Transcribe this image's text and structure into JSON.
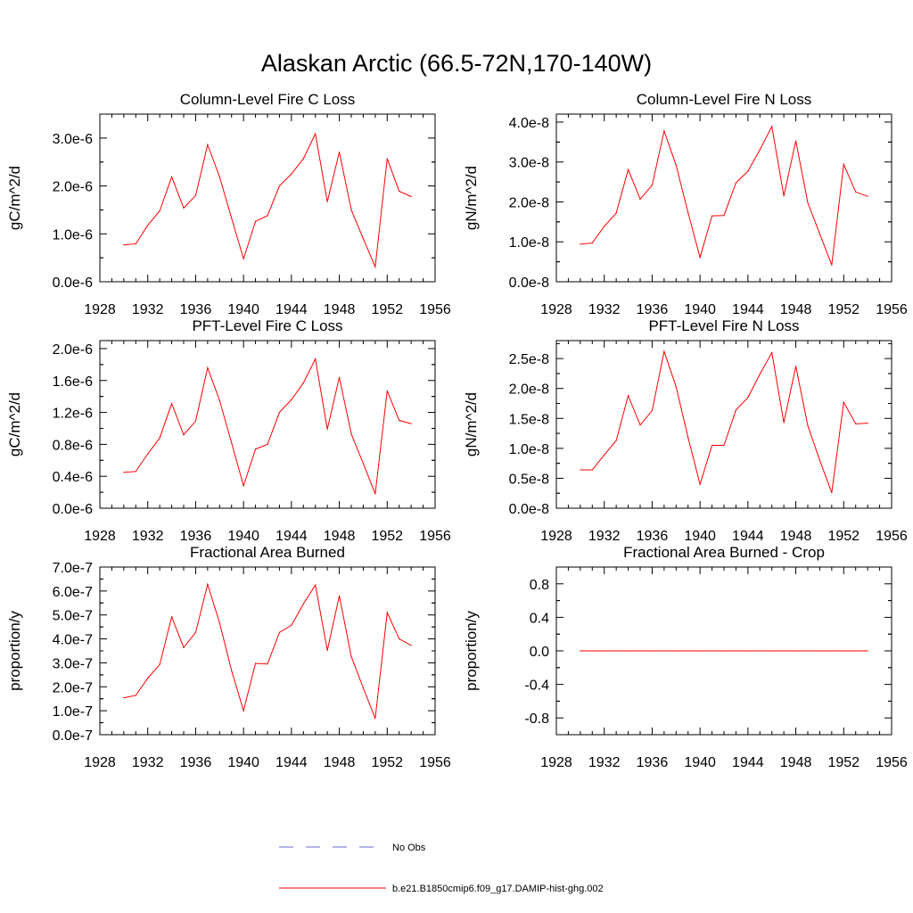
{
  "figure": {
    "title": "Alaskan Arctic (66.5-72N,170-140W)",
    "legend": [
      {
        "label": "No Obs",
        "style": "dashed",
        "color": "#6a6ad0"
      },
      {
        "label": "b.e21.B1850cmip6.f09_g17.DAMIP-hist-ghg.002",
        "style": "solid",
        "color": "#ff0000"
      }
    ]
  },
  "chart_data": [
    {
      "type": "line",
      "title": "Column-Level Fire C Loss",
      "xlabel": "",
      "ylabel": "gC/m^2/d",
      "xlim": [
        1928,
        1956
      ],
      "ylim": [
        0,
        3.5e-06
      ],
      "xticks": [
        1928,
        1932,
        1936,
        1940,
        1944,
        1948,
        1952,
        1956
      ],
      "xtick_labels": [
        "1928",
        "1932",
        "1936",
        "1940",
        "1944",
        "1948",
        "1952",
        "1956"
      ],
      "yticks": [
        0,
        1e-06,
        2e-06,
        3e-06
      ],
      "ytick_labels": [
        "0.0e-6",
        "1.0e-6",
        "2.0e-6",
        "3.0e-6"
      ],
      "grid": false,
      "series": [
        {
          "color": "#ff0000",
          "x": [
            1930,
            1931,
            1932,
            1933,
            1934,
            1935,
            1936,
            1937,
            1938,
            1939,
            1940,
            1941,
            1942,
            1943,
            1944,
            1945,
            1946,
            1947,
            1948,
            1949,
            1950,
            1951,
            1952,
            1953,
            1954
          ],
          "values": [
            7.7e-07,
            7.9e-07,
            1.18e-06,
            1.48e-06,
            2.19e-06,
            1.54e-06,
            1.8e-06,
            2.86e-06,
            2.19e-06,
            1.33e-06,
            4.8e-07,
            1.26e-06,
            1.38e-06,
            2e-06,
            2.25e-06,
            2.57e-06,
            3.09e-06,
            1.67e-06,
            2.71e-06,
            1.5e-06,
            9e-07,
            3.1e-07,
            2.57e-06,
            1.89e-06,
            1.78e-06
          ]
        }
      ]
    },
    {
      "type": "line",
      "title": "Column-Level Fire N Loss",
      "xlabel": "",
      "ylabel": "gN/m^2/d",
      "xlim": [
        1928,
        1956
      ],
      "ylim": [
        0,
        4.2e-08
      ],
      "xticks": [
        1928,
        1932,
        1936,
        1940,
        1944,
        1948,
        1952,
        1956
      ],
      "xtick_labels": [
        "1928",
        "1932",
        "1936",
        "1940",
        "1944",
        "1948",
        "1952",
        "1956"
      ],
      "yticks": [
        0,
        1e-08,
        2e-08,
        3e-08,
        4e-08
      ],
      "ytick_labels": [
        "0.0e-8",
        "1.0e-8",
        "2.0e-8",
        "3.0e-8",
        "4.0e-8"
      ],
      "grid": false,
      "series": [
        {
          "color": "#ff0000",
          "x": [
            1930,
            1931,
            1932,
            1933,
            1934,
            1935,
            1936,
            1937,
            1938,
            1939,
            1940,
            1941,
            1942,
            1943,
            1944,
            1945,
            1946,
            1947,
            1948,
            1949,
            1950,
            1951,
            1952,
            1953,
            1954
          ],
          "values": [
            9.4e-09,
            9.7e-09,
            1.39e-08,
            1.72e-08,
            2.81e-08,
            2.07e-08,
            2.42e-08,
            3.78e-08,
            2.92e-08,
            1.73e-08,
            6.1e-09,
            1.65e-08,
            1.66e-08,
            2.48e-08,
            2.77e-08,
            3.31e-08,
            3.89e-08,
            2.15e-08,
            3.53e-08,
            1.98e-08,
            1.2e-08,
            4.2e-09,
            2.94e-08,
            2.25e-08,
            2.14e-08
          ]
        }
      ]
    },
    {
      "type": "line",
      "title": "PFT-Level Fire C Loss",
      "xlabel": "",
      "ylabel": "gC/m^2/d",
      "xlim": [
        1928,
        1956
      ],
      "ylim": [
        0,
        2.1e-06
      ],
      "xticks": [
        1928,
        1932,
        1936,
        1940,
        1944,
        1948,
        1952,
        1956
      ],
      "xtick_labels": [
        "1928",
        "1932",
        "1936",
        "1940",
        "1944",
        "1948",
        "1952",
        "1956"
      ],
      "yticks": [
        0,
        4e-07,
        8e-07,
        1.2e-06,
        1.6e-06,
        2e-06
      ],
      "ytick_labels": [
        "0.0e-6",
        "0.4e-6",
        "0.8e-6",
        "1.2e-6",
        "1.6e-6",
        "2.0e-6"
      ],
      "grid": false,
      "series": [
        {
          "color": "#ff0000",
          "x": [
            1930,
            1931,
            1932,
            1933,
            1934,
            1935,
            1936,
            1937,
            1938,
            1939,
            1940,
            1941,
            1942,
            1943,
            1944,
            1945,
            1946,
            1947,
            1948,
            1949,
            1950,
            1951,
            1952,
            1953,
            1954
          ],
          "values": [
            4.5e-07,
            4.6e-07,
            6.8e-07,
            8.8e-07,
            1.31e-06,
            9.2e-07,
            1.09e-06,
            1.76e-06,
            1.35e-06,
            8.2e-07,
            2.8e-07,
            7.4e-07,
            8e-07,
            1.2e-06,
            1.36e-06,
            1.57e-06,
            1.87e-06,
            9.9e-07,
            1.64e-06,
            9.3e-07,
            5.6e-07,
            1.8e-07,
            1.47e-06,
            1.1e-06,
            1.06e-06
          ]
        }
      ]
    },
    {
      "type": "line",
      "title": "PFT-Level Fire N Loss",
      "xlabel": "",
      "ylabel": "gN/m^2/d",
      "xlim": [
        1928,
        1956
      ],
      "ylim": [
        0,
        2.8e-08
      ],
      "xticks": [
        1928,
        1932,
        1936,
        1940,
        1944,
        1948,
        1952,
        1956
      ],
      "xtick_labels": [
        "1928",
        "1932",
        "1936",
        "1940",
        "1944",
        "1948",
        "1952",
        "1956"
      ],
      "yticks": [
        0,
        5e-09,
        1e-08,
        1.5e-08,
        2e-08,
        2.5e-08
      ],
      "ytick_labels": [
        "0.0e-8",
        "0.5e-8",
        "1.0e-8",
        "1.5e-8",
        "2.0e-8",
        "2.5e-8"
      ],
      "grid": false,
      "series": [
        {
          "color": "#ff0000",
          "x": [
            1930,
            1931,
            1932,
            1933,
            1934,
            1935,
            1936,
            1937,
            1938,
            1939,
            1940,
            1941,
            1942,
            1943,
            1944,
            1945,
            1946,
            1947,
            1948,
            1949,
            1950,
            1951,
            1952,
            1953,
            1954
          ],
          "values": [
            6.4e-09,
            6.4e-09,
            8.9e-09,
            1.13e-08,
            1.88e-08,
            1.39e-08,
            1.63e-08,
            2.62e-08,
            2.03e-08,
            1.18e-08,
            4e-09,
            1.05e-08,
            1.05e-08,
            1.64e-08,
            1.85e-08,
            2.24e-08,
            2.6e-08,
            1.43e-08,
            2.37e-08,
            1.38e-08,
            8e-09,
            2.6e-09,
            1.77e-08,
            1.41e-08,
            1.42e-08
          ]
        }
      ]
    },
    {
      "type": "line",
      "title": "Fractional Area Burned",
      "xlabel": "",
      "ylabel": "proportion/y",
      "xlim": [
        1928,
        1956
      ],
      "ylim": [
        0,
        7e-07
      ],
      "xticks": [
        1928,
        1932,
        1936,
        1940,
        1944,
        1948,
        1952,
        1956
      ],
      "xtick_labels": [
        "1928",
        "1932",
        "1936",
        "1940",
        "1944",
        "1948",
        "1952",
        "1956"
      ],
      "yticks": [
        0,
        1e-07,
        2e-07,
        3e-07,
        4e-07,
        5e-07,
        6e-07,
        7e-07
      ],
      "ytick_labels": [
        "0.0e-7",
        "1.0e-7",
        "2.0e-7",
        "3.0e-7",
        "4.0e-7",
        "5.0e-7",
        "6.0e-7",
        "7.0e-7"
      ],
      "grid": false,
      "series": [
        {
          "color": "#ff0000",
          "x": [
            1930,
            1931,
            1932,
            1933,
            1934,
            1935,
            1936,
            1937,
            1938,
            1939,
            1940,
            1941,
            1942,
            1943,
            1944,
            1945,
            1946,
            1947,
            1948,
            1949,
            1950,
            1951,
            1952,
            1953,
            1954
          ],
          "values": [
            1.54e-07,
            1.64e-07,
            2.36e-07,
            2.93e-07,
            4.92e-07,
            3.64e-07,
            4.27e-07,
            6.28e-07,
            4.67e-07,
            2.68e-07,
            1e-07,
            2.98e-07,
            2.95e-07,
            4.27e-07,
            4.57e-07,
            5.46e-07,
            6.25e-07,
            3.52e-07,
            5.8e-07,
            3.26e-07,
            1.95e-07,
            6.8e-08,
            5.1e-07,
            4e-07,
            3.73e-07
          ]
        }
      ]
    },
    {
      "type": "line",
      "title": "Fractional Area Burned - Crop",
      "xlabel": "",
      "ylabel": "proportion/y",
      "xlim": [
        1928,
        1956
      ],
      "ylim": [
        -1.0,
        1.0
      ],
      "xticks": [
        1928,
        1932,
        1936,
        1940,
        1944,
        1948,
        1952,
        1956
      ],
      "xtick_labels": [
        "1928",
        "1932",
        "1936",
        "1940",
        "1944",
        "1948",
        "1952",
        "1956"
      ],
      "yticks": [
        -0.8,
        -0.4,
        0.0,
        0.4,
        0.8
      ],
      "ytick_labels": [
        "-0.8",
        "-0.4",
        "0.0",
        "0.4",
        "0.8"
      ],
      "grid": false,
      "series": [
        {
          "color": "#ff0000",
          "x": [
            1930,
            1931,
            1932,
            1933,
            1934,
            1935,
            1936,
            1937,
            1938,
            1939,
            1940,
            1941,
            1942,
            1943,
            1944,
            1945,
            1946,
            1947,
            1948,
            1949,
            1950,
            1951,
            1952,
            1953,
            1954
          ],
          "values": [
            0,
            0,
            0,
            0,
            0,
            0,
            0,
            0,
            0,
            0,
            0,
            0,
            0,
            0,
            0,
            0,
            0,
            0,
            0,
            0,
            0,
            0,
            0,
            0,
            0
          ]
        }
      ]
    }
  ]
}
